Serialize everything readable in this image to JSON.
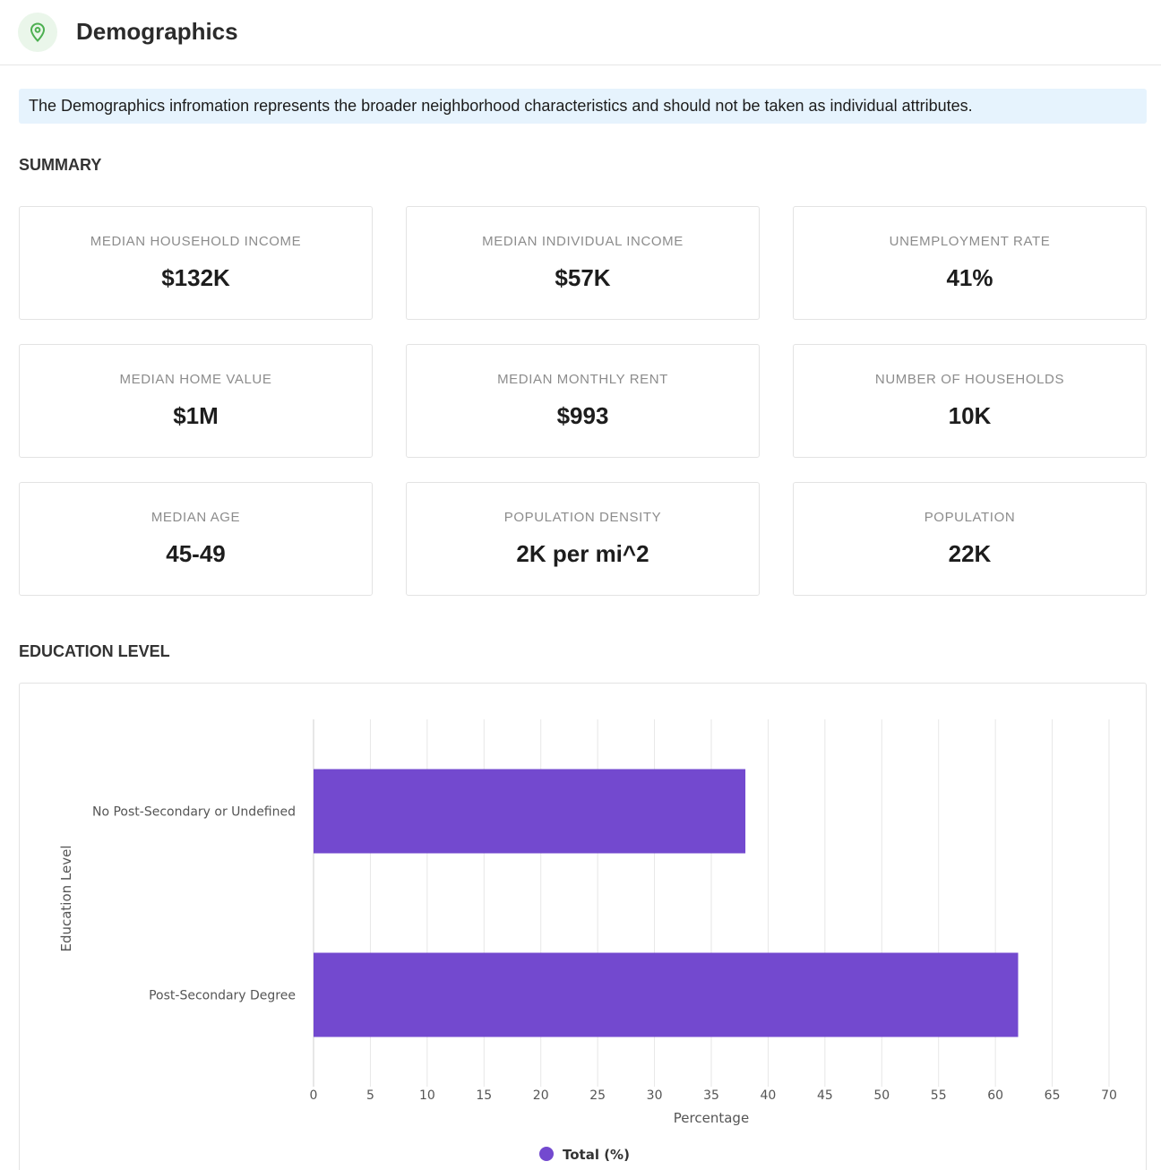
{
  "header": {
    "title": "Demographics",
    "icon": "map-pin-icon",
    "icon_color": "#4caf50"
  },
  "notice": {
    "text": "The Demographics infromation represents the broader neighborhood characteristics and should not be taken as individual attributes."
  },
  "summary": {
    "title": "SUMMARY",
    "cards": [
      {
        "label": "MEDIAN HOUSEHOLD INCOME",
        "value": "$132K"
      },
      {
        "label": "MEDIAN INDIVIDUAL INCOME",
        "value": "$57K"
      },
      {
        "label": "UNEMPLOYMENT RATE",
        "value": "41%"
      },
      {
        "label": "MEDIAN HOME VALUE",
        "value": "$1M"
      },
      {
        "label": "MEDIAN MONTHLY RENT",
        "value": "$993"
      },
      {
        "label": "NUMBER OF HOUSEHOLDS",
        "value": "10K"
      },
      {
        "label": "MEDIAN AGE",
        "value": "45-49"
      },
      {
        "label": "POPULATION DENSITY",
        "value": "2K per mi^2"
      },
      {
        "label": "POPULATION",
        "value": "22K"
      }
    ]
  },
  "education": {
    "title": "EDUCATION LEVEL"
  },
  "chart_data": {
    "type": "bar",
    "orientation": "horizontal",
    "categories": [
      "No Post-Secondary or Undefined",
      "Post-Secondary Degree"
    ],
    "series": [
      {
        "name": "Total (%)",
        "values": [
          38,
          62
        ],
        "color": "#7349cf"
      }
    ],
    "xlabel": "Percentage",
    "ylabel": "Education Level",
    "xlim": [
      0,
      70
    ],
    "xticks": [
      0,
      5,
      10,
      15,
      20,
      25,
      30,
      35,
      40,
      45,
      50,
      55,
      60,
      65,
      70
    ],
    "grid": true,
    "legend": "bottom-center"
  }
}
